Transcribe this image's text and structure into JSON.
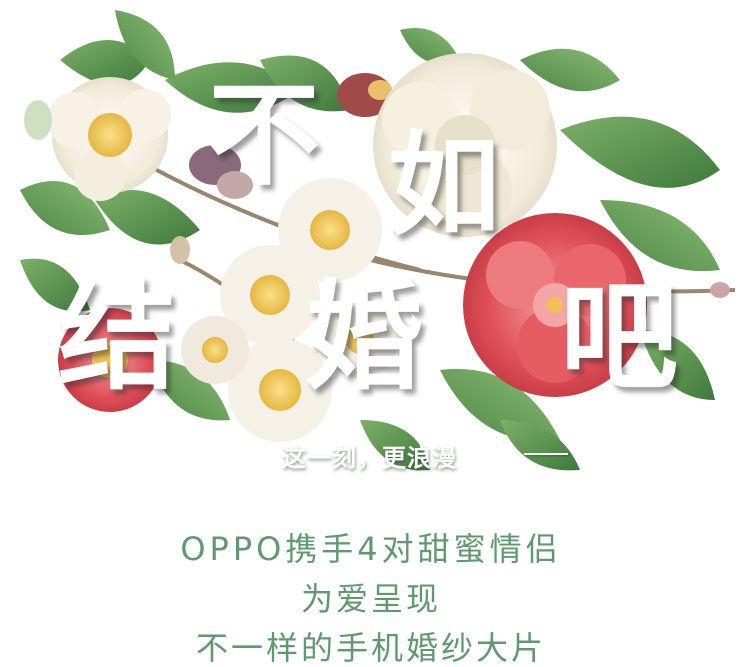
{
  "headline": {
    "chars": [
      "不",
      "如",
      "结",
      "婚",
      "吧"
    ]
  },
  "tagline": {
    "text": "这一刻，更浪漫"
  },
  "caption": {
    "line1": "OPPO携手4对甜蜜情侣",
    "line2": "为爱呈现",
    "line3": "不一样的手机婚纱大片"
  },
  "colors": {
    "caption_text": "#5f9a6e",
    "leaf_green": "#5e9a4e",
    "camellia_red": "#e0505a",
    "cream_flower": "#f4efe2"
  }
}
